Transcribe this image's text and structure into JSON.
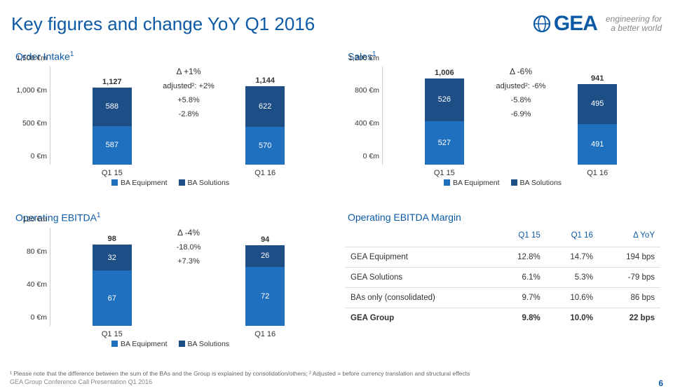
{
  "colors": {
    "accent": "#0c5aa6",
    "equip": "#2070c0",
    "sol": "#1d4e86",
    "grid": "#cccccc",
    "text": "#333333"
  },
  "title": "Key figures and change YoY Q1 2016",
  "logo_text": "GEA",
  "tagline_l1": "engineering for",
  "tagline_l2": "a better world",
  "footnote": "¹ Please note that the difference between the sum of the BAs and the Group is explained by consolidation/others; ² Adjusted = before currency translation and structural effects",
  "footer_left": "GEA Group Conference Call Presentation Q1 2016",
  "page_num": "6",
  "legend_equip": "BA Equipment",
  "legend_sol": "BA Solutions",
  "panels": {
    "order_intake": {
      "title": "Order Intake",
      "title_sup": "1",
      "ymax": 1500,
      "ytick_step": 500,
      "unit": "€m",
      "bars": [
        {
          "cat": "Q1 15",
          "total": "1,127",
          "equip": 587,
          "sol": 588,
          "equip_lbl": "587",
          "sol_lbl": "588"
        },
        {
          "cat": "Q1 16",
          "total": "1,144",
          "equip": 570,
          "sol": 622,
          "equip_lbl": "570",
          "sol_lbl": "622"
        }
      ],
      "annot": {
        "delta": "Δ  +1%",
        "adj": "adjusted²: +2%",
        "sol": "+5.8%",
        "equip": "-2.8%"
      }
    },
    "sales": {
      "title": "Sales",
      "title_sup": "1",
      "ymax": 1200,
      "ytick_step": 400,
      "unit": "€m",
      "bars": [
        {
          "cat": "Q1 15",
          "total": "1,006",
          "equip": 527,
          "sol": 526,
          "equip_lbl": "527",
          "sol_lbl": "526"
        },
        {
          "cat": "Q1 16",
          "total": "941",
          "equip": 491,
          "sol": 495,
          "equip_lbl": "491",
          "sol_lbl": "495"
        }
      ],
      "annot": {
        "delta": "Δ  -6%",
        "adj": "adjusted²: -6%",
        "sol": "-5.8%",
        "equip": "-6.9%"
      }
    },
    "ebitda": {
      "title": "Operating EBITDA",
      "title_sup": "1",
      "ymax": 120,
      "ytick_step": 40,
      "unit": "€m",
      "bars": [
        {
          "cat": "Q1 15",
          "total": "98",
          "equip": 67,
          "sol": 32,
          "equip_lbl": "67",
          "sol_lbl": "32"
        },
        {
          "cat": "Q1 16",
          "total": "94",
          "equip": 72,
          "sol": 26,
          "equip_lbl": "72",
          "sol_lbl": "26"
        }
      ],
      "annot": {
        "delta": "Δ  -4%",
        "adj": "",
        "sol": "-18.0%",
        "equip": "+7.3%"
      }
    }
  },
  "margin_table": {
    "title": "Operating EBITDA Margin",
    "cols": [
      "",
      "Q1 15",
      "Q1 16",
      "Δ YoY"
    ],
    "rows": [
      [
        "GEA Equipment",
        "12.8%",
        "14.7%",
        "194 bps"
      ],
      [
        "GEA Solutions",
        "6.1%",
        "5.3%",
        "-79 bps"
      ],
      [
        "BAs only (consolidated)",
        "9.7%",
        "10.6%",
        "86 bps"
      ]
    ],
    "total_row": [
      "GEA Group",
      "9.8%",
      "10.0%",
      "22 bps"
    ]
  }
}
